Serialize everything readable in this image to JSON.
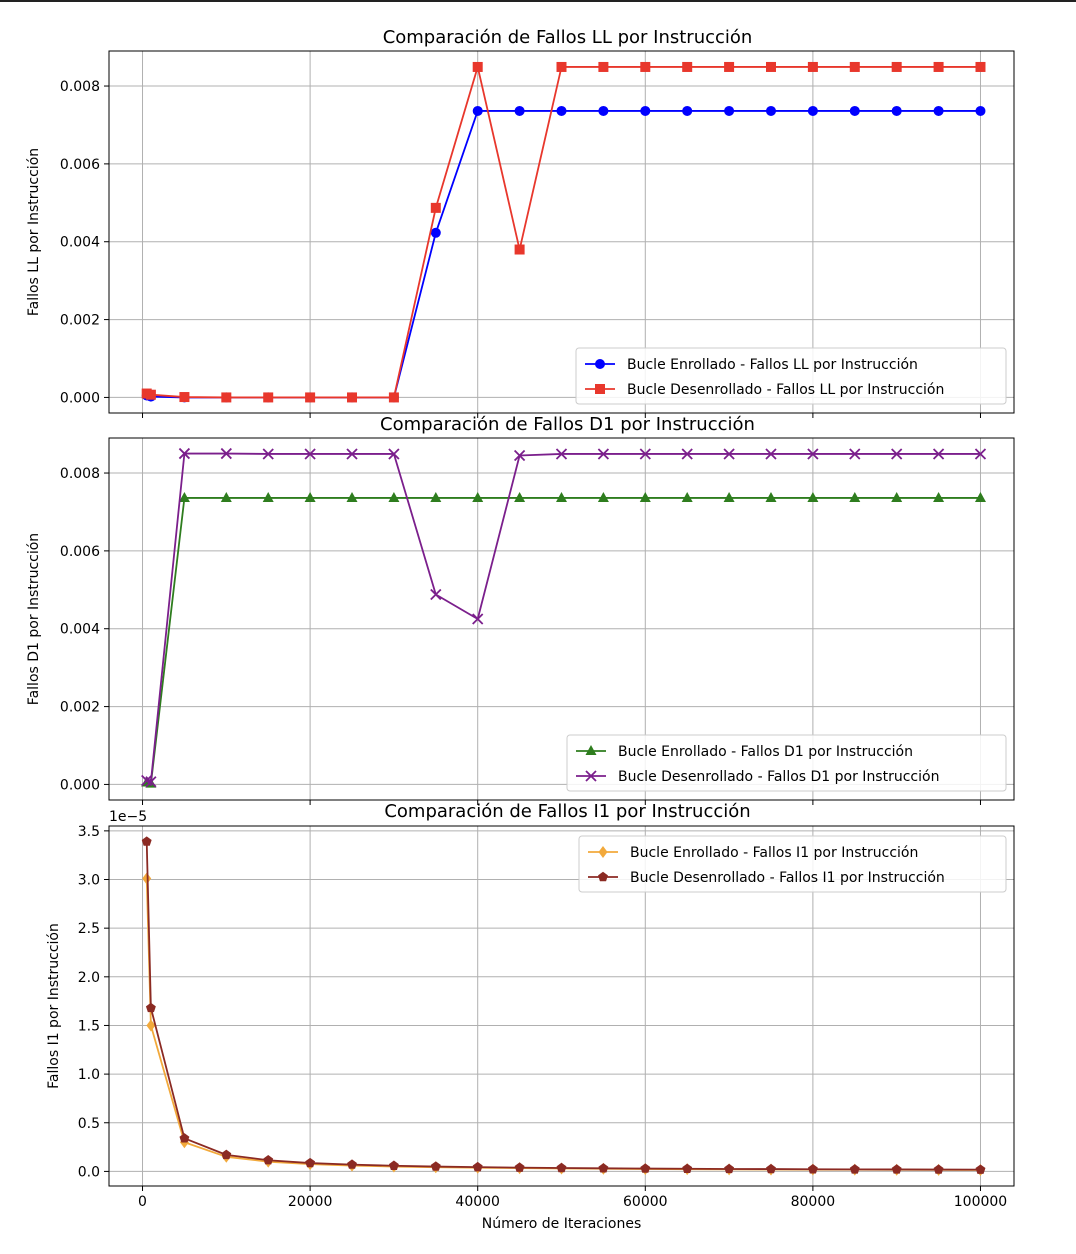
{
  "colors": {
    "enrollado_ll": "#0000ff",
    "desenrollado_ll": "#e8372c",
    "enrollado_d1": "#2e7d1e",
    "desenrollado_d1": "#7b1f8c",
    "enrollado_i1": "#f2a93b",
    "desenrollado_i1": "#8b2a23",
    "grid": "#b0b0b0"
  },
  "shared_x": {
    "label": "Número de Iteraciones",
    "ticks": [
      0,
      20000,
      40000,
      60000,
      80000,
      100000
    ],
    "tick_labels": [
      "0",
      "20000",
      "40000",
      "60000",
      "80000",
      "100000"
    ]
  },
  "chart_data": [
    {
      "type": "line",
      "title": "Comparación de Fallos LL por Instrucción",
      "xlabel": "",
      "ylabel": "Fallos LL por Instrucción",
      "ylim": [
        -0.0004,
        0.0089
      ],
      "yticks": [
        0.0,
        0.002,
        0.004,
        0.006,
        0.008
      ],
      "ytick_labels": [
        "0.000",
        "0.002",
        "0.004",
        "0.006",
        "0.008"
      ],
      "scale_label": "",
      "grid": true,
      "legend_position": "lower-right",
      "x": [
        500,
        1000,
        5000,
        10000,
        15000,
        20000,
        25000,
        30000,
        35000,
        40000,
        45000,
        50000,
        55000,
        60000,
        65000,
        70000,
        75000,
        80000,
        85000,
        90000,
        95000,
        100000
      ],
      "series": [
        {
          "name": "Bucle Enrollado - Fallos LL por Instrucción",
          "marker": "circle",
          "color_key": "enrollado_ll",
          "values": [
            5e-05,
            2e-05,
            0.0,
            0.0,
            0.0,
            0.0,
            0.0,
            0.0,
            0.00423,
            0.00736,
            0.00736,
            0.00736,
            0.00736,
            0.00736,
            0.00736,
            0.00736,
            0.00736,
            0.00736,
            0.00736,
            0.00736,
            0.00736,
            0.00736
          ]
        },
        {
          "name": "Bucle Desenrollado - Fallos LL por Instrucción",
          "marker": "square",
          "color_key": "desenrollado_ll",
          "values": [
            0.0001,
            7e-05,
            1e-05,
            0.0,
            0.0,
            0.0,
            0.0,
            0.0,
            0.00487,
            0.00849,
            0.0038,
            0.00849,
            0.00849,
            0.00849,
            0.00849,
            0.00849,
            0.00849,
            0.00849,
            0.00849,
            0.00849,
            0.00849,
            0.00849
          ]
        }
      ]
    },
    {
      "type": "line",
      "title": "Comparación de Fallos D1 por Instrucción",
      "xlabel": "",
      "ylabel": "Fallos D1 por Instrucción",
      "ylim": [
        -0.0004,
        0.0089
      ],
      "yticks": [
        0.0,
        0.002,
        0.004,
        0.006,
        0.008
      ],
      "ytick_labels": [
        "0.000",
        "0.002",
        "0.004",
        "0.006",
        "0.008"
      ],
      "scale_label": "",
      "grid": true,
      "legend_position": "lower-right",
      "x": [
        500,
        1000,
        5000,
        10000,
        15000,
        20000,
        25000,
        30000,
        35000,
        40000,
        45000,
        50000,
        55000,
        60000,
        65000,
        70000,
        75000,
        80000,
        85000,
        90000,
        95000,
        100000
      ],
      "series": [
        {
          "name": "Bucle Enrollado - Fallos D1 por Instrucción",
          "marker": "triangle",
          "color_key": "enrollado_d1",
          "values": [
            5e-05,
            2e-05,
            0.00736,
            0.00736,
            0.00736,
            0.00736,
            0.00736,
            0.00736,
            0.00736,
            0.00736,
            0.00736,
            0.00736,
            0.00736,
            0.00736,
            0.00736,
            0.00736,
            0.00736,
            0.00736,
            0.00736,
            0.00736,
            0.00736,
            0.00736
          ]
        },
        {
          "name": "Bucle Desenrollado - Fallos D1 por Instrucción",
          "marker": "x",
          "color_key": "desenrollado_d1",
          "values": [
            0.0001,
            7e-05,
            0.0085,
            0.0085,
            0.00849,
            0.00849,
            0.00849,
            0.00849,
            0.00488,
            0.00425,
            0.00845,
            0.00849,
            0.00849,
            0.00849,
            0.00849,
            0.00849,
            0.00849,
            0.00849,
            0.00849,
            0.00849,
            0.00849,
            0.00849
          ]
        }
      ]
    },
    {
      "type": "line",
      "title": "Comparación de Fallos I1 por Instrucción",
      "xlabel": "Número de Iteraciones",
      "ylabel": "Fallos I1 por Instrucción",
      "ylim": [
        -0.15,
        3.55
      ],
      "yticks": [
        0.0,
        0.5,
        1.0,
        1.5,
        2.0,
        2.5,
        3.0,
        3.5
      ],
      "ytick_labels": [
        "0.0",
        "0.5",
        "1.0",
        "1.5",
        "2.0",
        "2.5",
        "3.0",
        "3.5"
      ],
      "scale_label": "1e−5",
      "grid": true,
      "legend_position": "upper-right",
      "x": [
        500,
        1000,
        5000,
        10000,
        15000,
        20000,
        25000,
        30000,
        35000,
        40000,
        45000,
        50000,
        55000,
        60000,
        65000,
        70000,
        75000,
        80000,
        85000,
        90000,
        95000,
        100000
      ],
      "series": [
        {
          "name": "Bucle Enrollado - Fallos I1 por Instrucción",
          "marker": "diamond",
          "color_key": "enrollado_i1",
          "values": [
            3.01,
            1.5,
            0.3,
            0.15,
            0.1,
            0.075,
            0.06,
            0.05,
            0.043,
            0.038,
            0.034,
            0.03,
            0.027,
            0.025,
            0.023,
            0.021,
            0.02,
            0.019,
            0.018,
            0.017,
            0.016,
            0.015
          ]
        },
        {
          "name": "Bucle Desenrollado - Fallos I1 por Instrucción",
          "marker": "pentagon",
          "color_key": "desenrollado_i1",
          "values": [
            3.39,
            1.68,
            0.34,
            0.17,
            0.115,
            0.086,
            0.07,
            0.058,
            0.05,
            0.044,
            0.039,
            0.035,
            0.032,
            0.029,
            0.027,
            0.025,
            0.024,
            0.022,
            0.021,
            0.02,
            0.019,
            0.018
          ]
        }
      ]
    }
  ]
}
